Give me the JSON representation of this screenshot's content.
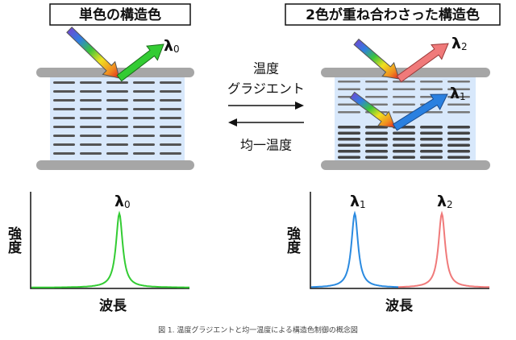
{
  "titles": {
    "left": "単色の構造色",
    "right": "2色が重ね合わさった構造色"
  },
  "middle": {
    "gradient_top": "温度",
    "gradient_bottom": "グラジエント",
    "uniform": "均一温度"
  },
  "reflections": {
    "left": {
      "symbol": "λ",
      "index": "0"
    },
    "right_upper": {
      "symbol": "λ",
      "index": "2"
    },
    "right_lower": {
      "symbol": "λ",
      "index": "1"
    }
  },
  "spectra": {
    "left": {
      "y_label": "強度",
      "x_label": "波長",
      "peak": {
        "symbol": "λ",
        "index": "0"
      }
    },
    "right": {
      "y_label": "強度",
      "x_label": "波長",
      "peaks": [
        {
          "symbol": "λ",
          "index": "1"
        },
        {
          "symbol": "λ",
          "index": "2"
        }
      ]
    }
  },
  "caption": "図 1. 温度グラジエントと均一温度による構造色制御の概念図"
}
